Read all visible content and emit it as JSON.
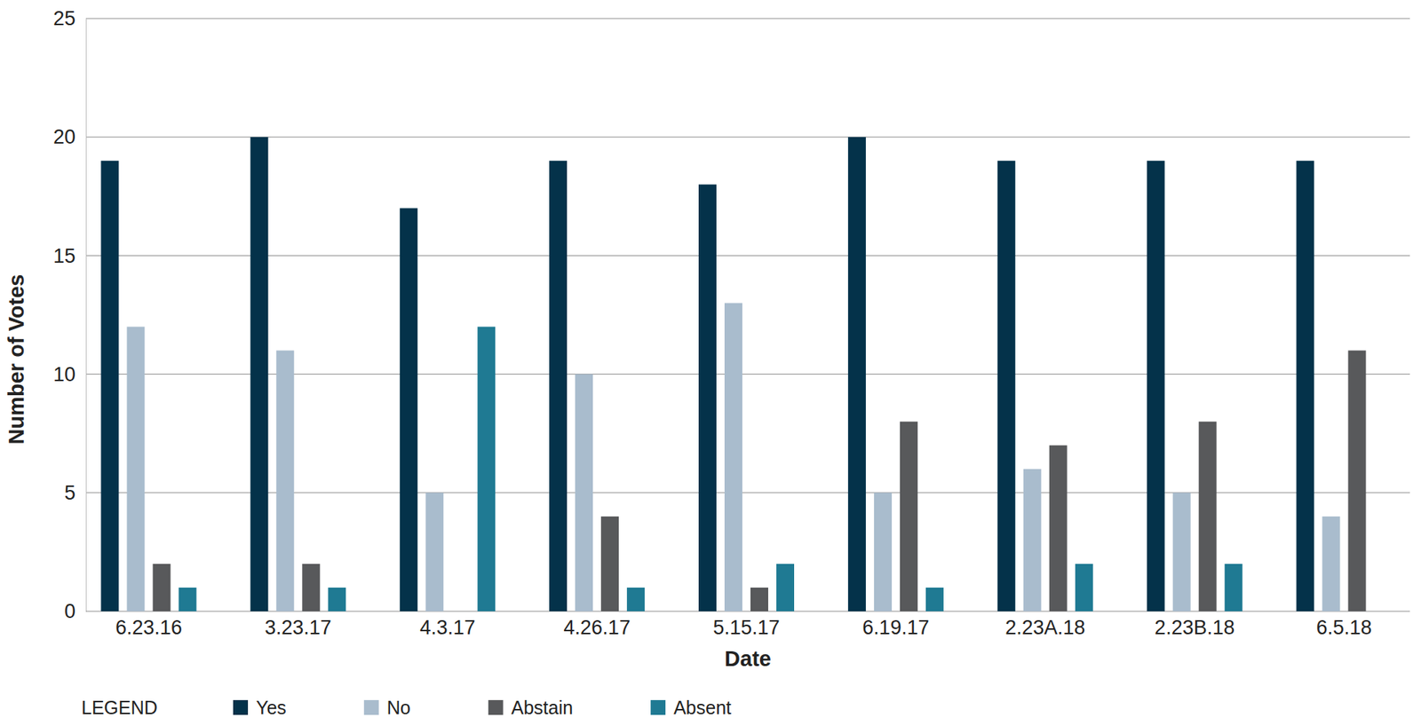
{
  "chart_data": {
    "type": "bar",
    "x_label": "Date",
    "y_label": "Number of Votes",
    "legend_title": "LEGEND",
    "legend": "bottom-left",
    "grid": true,
    "categories": [
      "6.23.16",
      "3.23.17",
      "4.3.17",
      "4.26.17",
      "5.15.17",
      "6.19.17",
      "2.23A.18",
      "2.23B.18",
      "6.5.18"
    ],
    "series": [
      {
        "name": "Yes",
        "color": "#04324a",
        "values": [
          19,
          20,
          17,
          19,
          18,
          20,
          19,
          19,
          19
        ]
      },
      {
        "name": "No",
        "color": "#a9bccd",
        "values": [
          12,
          11,
          5,
          10,
          13,
          5,
          6,
          5,
          4
        ]
      },
      {
        "name": "Abstain",
        "color": "#58595b",
        "values": [
          2,
          2,
          0,
          4,
          1,
          8,
          7,
          8,
          11
        ]
      },
      {
        "name": "Absent",
        "color": "#1f7a93",
        "values": [
          1,
          1,
          12,
          1,
          2,
          1,
          2,
          2,
          0
        ]
      }
    ],
    "ylim": [
      0,
      25
    ],
    "yticks": [
      0,
      5,
      10,
      15,
      20,
      25
    ]
  }
}
